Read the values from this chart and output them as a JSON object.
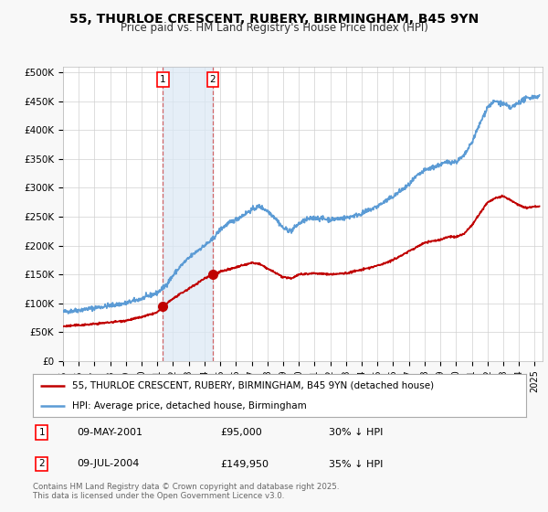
{
  "title_line1": "55, THURLOE CRESCENT, RUBERY, BIRMINGHAM, B45 9YN",
  "title_line2": "Price paid vs. HM Land Registry's House Price Index (HPI)",
  "ylabel_ticks": [
    "£0",
    "£50K",
    "£100K",
    "£150K",
    "£200K",
    "£250K",
    "£300K",
    "£350K",
    "£400K",
    "£450K",
    "£500K"
  ],
  "ytick_vals": [
    0,
    50000,
    100000,
    150000,
    200000,
    250000,
    300000,
    350000,
    400000,
    450000,
    500000
  ],
  "ylim": [
    0,
    510000
  ],
  "xlim_start": 1995.0,
  "xlim_end": 2025.5,
  "hpi_color": "#5b9bd5",
  "price_color": "#c00000",
  "background_color": "#f8f8f8",
  "plot_bg_color": "#ffffff",
  "grid_color": "#d0d0d0",
  "sale1_date": "09-MAY-2001",
  "sale1_price": 95000,
  "sale1_hpi_pct": "30% ↓ HPI",
  "sale1_year": 2001.36,
  "sale2_date": "09-JUL-2004",
  "sale2_price": 149950,
  "sale2_hpi_pct": "35% ↓ HPI",
  "sale2_year": 2004.52,
  "legend_label1": "55, THURLOE CRESCENT, RUBERY, BIRMINGHAM, B45 9YN (detached house)",
  "legend_label2": "HPI: Average price, detached house, Birmingham",
  "footer": "Contains HM Land Registry data © Crown copyright and database right 2025.\nThis data is licensed under the Open Government Licence v3.0.",
  "sale_marker_color": "#c00000",
  "shade_color": "#dae8f5"
}
